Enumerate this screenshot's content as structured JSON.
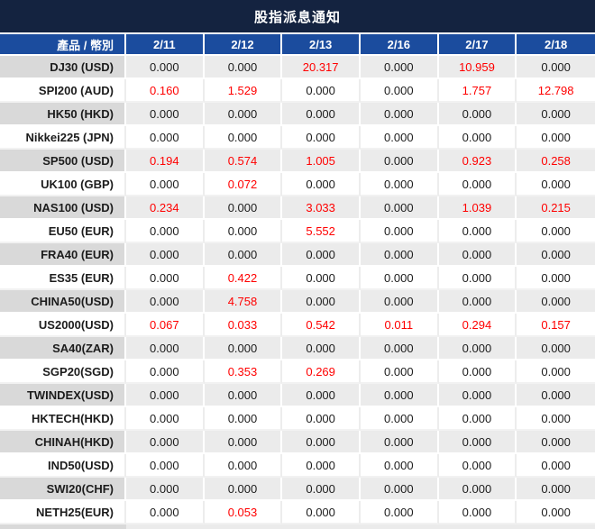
{
  "title": "股指派息通知",
  "chart_data": {
    "type": "table",
    "title": "股指派息通知",
    "columns": [
      "產品 / 幣別",
      "2/11",
      "2/12",
      "2/13",
      "2/16",
      "2/17",
      "2/18"
    ],
    "rows": [
      {
        "label": "DJ30 (USD)",
        "values": [
          "0.000",
          "0.000",
          "20.317",
          "0.000",
          "10.959",
          "0.000"
        ]
      },
      {
        "label": "SPI200 (AUD)",
        "values": [
          "0.160",
          "1.529",
          "0.000",
          "0.000",
          "1.757",
          "12.798"
        ]
      },
      {
        "label": "HK50 (HKD)",
        "values": [
          "0.000",
          "0.000",
          "0.000",
          "0.000",
          "0.000",
          "0.000"
        ]
      },
      {
        "label": "Nikkei225 (JPN)",
        "values": [
          "0.000",
          "0.000",
          "0.000",
          "0.000",
          "0.000",
          "0.000"
        ]
      },
      {
        "label": "SP500 (USD)",
        "values": [
          "0.194",
          "0.574",
          "1.005",
          "0.000",
          "0.923",
          "0.258"
        ]
      },
      {
        "label": "UK100 (GBP)",
        "values": [
          "0.000",
          "0.072",
          "0.000",
          "0.000",
          "0.000",
          "0.000"
        ]
      },
      {
        "label": "NAS100 (USD)",
        "values": [
          "0.234",
          "0.000",
          "3.033",
          "0.000",
          "1.039",
          "0.215"
        ]
      },
      {
        "label": "EU50 (EUR)",
        "values": [
          "0.000",
          "0.000",
          "5.552",
          "0.000",
          "0.000",
          "0.000"
        ]
      },
      {
        "label": "FRA40 (EUR)",
        "values": [
          "0.000",
          "0.000",
          "0.000",
          "0.000",
          "0.000",
          "0.000"
        ]
      },
      {
        "label": "ES35 (EUR)",
        "values": [
          "0.000",
          "0.422",
          "0.000",
          "0.000",
          "0.000",
          "0.000"
        ]
      },
      {
        "label": "CHINA50(USD)",
        "values": [
          "0.000",
          "4.758",
          "0.000",
          "0.000",
          "0.000",
          "0.000"
        ]
      },
      {
        "label": "US2000(USD)",
        "values": [
          "0.067",
          "0.033",
          "0.542",
          "0.011",
          "0.294",
          "0.157"
        ]
      },
      {
        "label": "SA40(ZAR)",
        "values": [
          "0.000",
          "0.000",
          "0.000",
          "0.000",
          "0.000",
          "0.000"
        ]
      },
      {
        "label": "SGP20(SGD)",
        "values": [
          "0.000",
          "0.353",
          "0.269",
          "0.000",
          "0.000",
          "0.000"
        ]
      },
      {
        "label": "TWINDEX(USD)",
        "values": [
          "0.000",
          "0.000",
          "0.000",
          "0.000",
          "0.000",
          "0.000"
        ]
      },
      {
        "label": "HKTECH(HKD)",
        "values": [
          "0.000",
          "0.000",
          "0.000",
          "0.000",
          "0.000",
          "0.000"
        ]
      },
      {
        "label": "CHINAH(HKD)",
        "values": [
          "0.000",
          "0.000",
          "0.000",
          "0.000",
          "0.000",
          "0.000"
        ]
      },
      {
        "label": "IND50(USD)",
        "values": [
          "0.000",
          "0.000",
          "0.000",
          "0.000",
          "0.000",
          "0.000"
        ]
      },
      {
        "label": "SWI20(CHF)",
        "values": [
          "0.000",
          "0.000",
          "0.000",
          "0.000",
          "0.000",
          "0.000"
        ]
      },
      {
        "label": "NETH25(EUR)",
        "values": [
          "0.000",
          "0.053",
          "0.000",
          "0.000",
          "0.000",
          "0.000"
        ]
      }
    ],
    "highlight_rule": "non-zero values rendered in red",
    "layout": {
      "alternating_rows": "gray/white starting gray",
      "first_column_align": "right",
      "value_align": "center"
    }
  },
  "colors": {
    "title_bg": "#142340",
    "header_bg": "#1b4c9e",
    "header_text": "#ffffff",
    "row_alt_bg": "#ebebeb",
    "row_alt_label_bg": "#d9d9d9",
    "row_bg": "#ffffff",
    "value_text": "#1c1c1c",
    "highlight_text": "#ff0000"
  }
}
